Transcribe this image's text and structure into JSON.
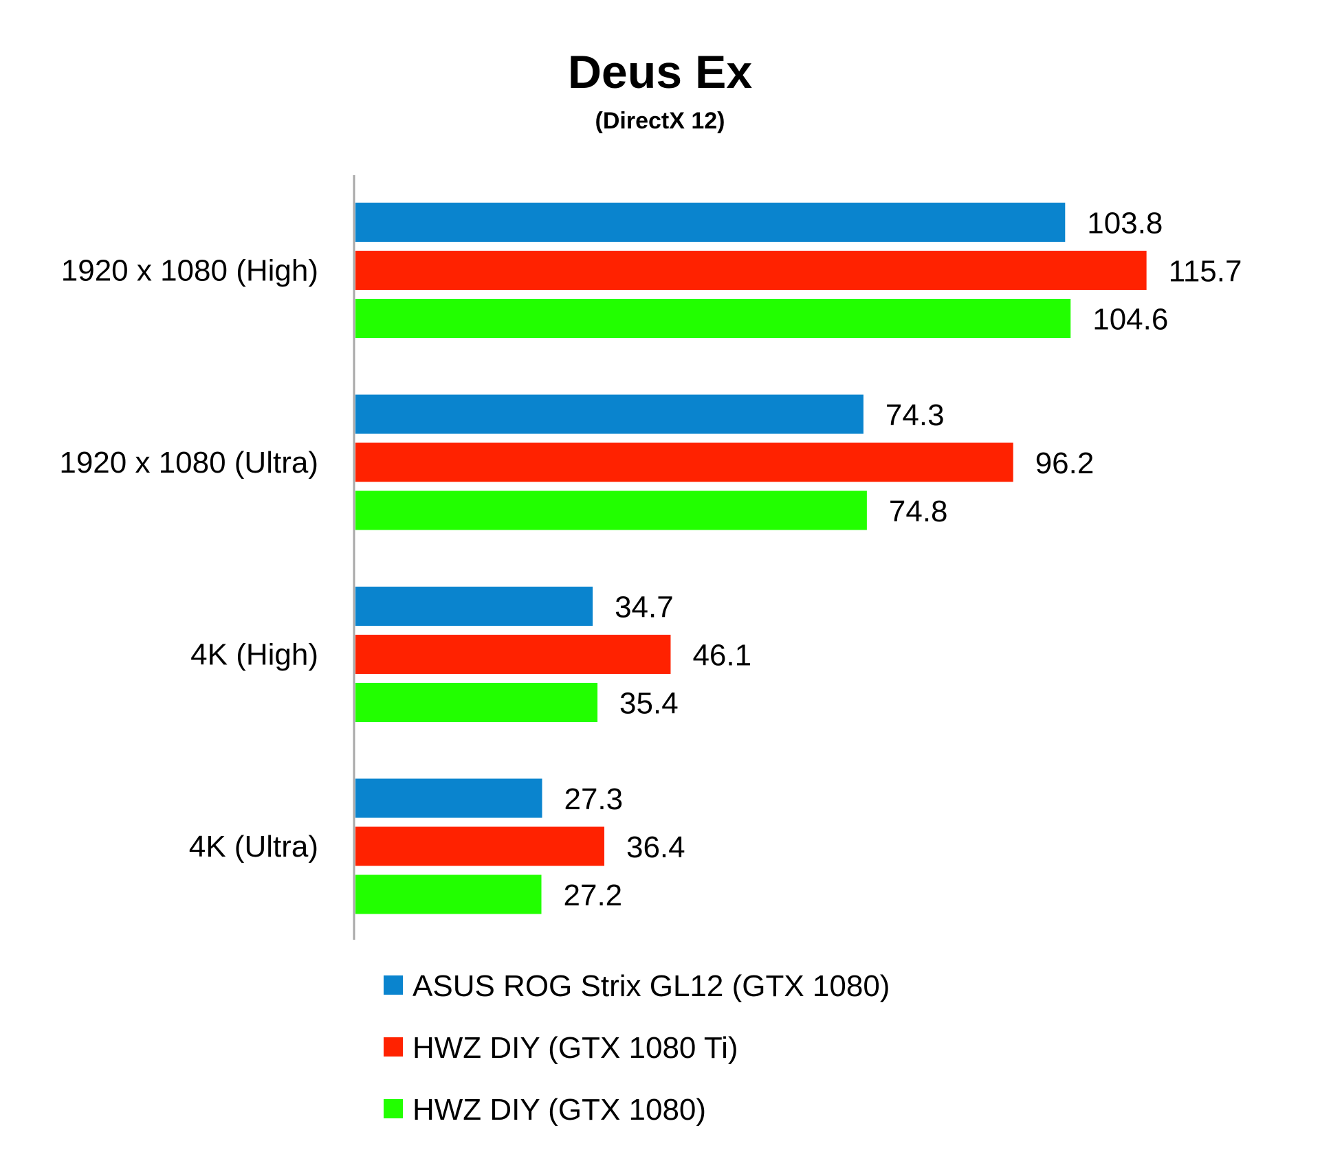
{
  "chart_data": {
    "type": "bar",
    "orientation": "horizontal",
    "title": "Deus Ex",
    "subtitle": "(DirectX 12)",
    "categories": [
      "1920 x 1080 (High)",
      "1920 x 1080 (Ultra)",
      "4K (High)",
      "4K (Ultra)"
    ],
    "series": [
      {
        "name": "ASUS ROG Strix GL12 (GTX 1080)",
        "color": "#0A84CE",
        "values": [
          103.8,
          74.3,
          34.7,
          27.3
        ]
      },
      {
        "name": "HWZ DIY (GTX 1080 Ti)",
        "color": "#FF2200",
        "values": [
          115.7,
          96.2,
          46.1,
          36.4
        ]
      },
      {
        "name": "HWZ DIY (GTX 1080)",
        "color": "#22FF00",
        "values": [
          104.6,
          74.8,
          35.4,
          27.2
        ]
      }
    ],
    "value_labels": [
      [
        "103.8",
        "74.3",
        "34.7",
        "27.3"
      ],
      [
        "115.7",
        "96.2",
        "46.1",
        "36.4"
      ],
      [
        "104.6",
        "74.8",
        "35.4",
        "27.2"
      ]
    ],
    "xlim": [
      0,
      120
    ],
    "gridlines": false,
    "legend_position": "bottom"
  }
}
